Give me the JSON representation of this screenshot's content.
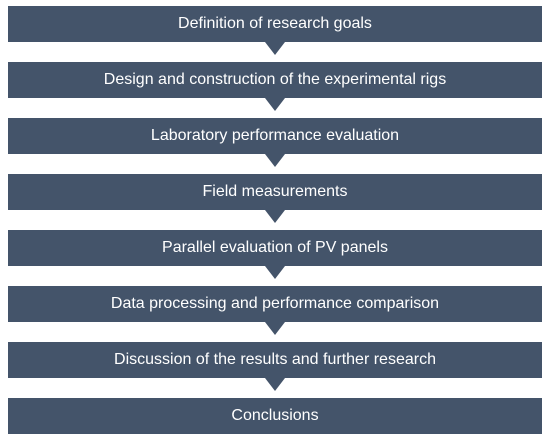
{
  "flowchart": {
    "steps": [
      "Definition of research goals",
      "Design and construction of the experimental rigs",
      "Laboratory performance evaluation",
      "Field measurements",
      "Parallel evaluation of PV panels",
      "Data processing and performance comparison",
      "Discussion of the results and further research",
      "Conclusions"
    ],
    "colors": {
      "box_fill": "#44546a",
      "text": "#ffffff"
    }
  }
}
